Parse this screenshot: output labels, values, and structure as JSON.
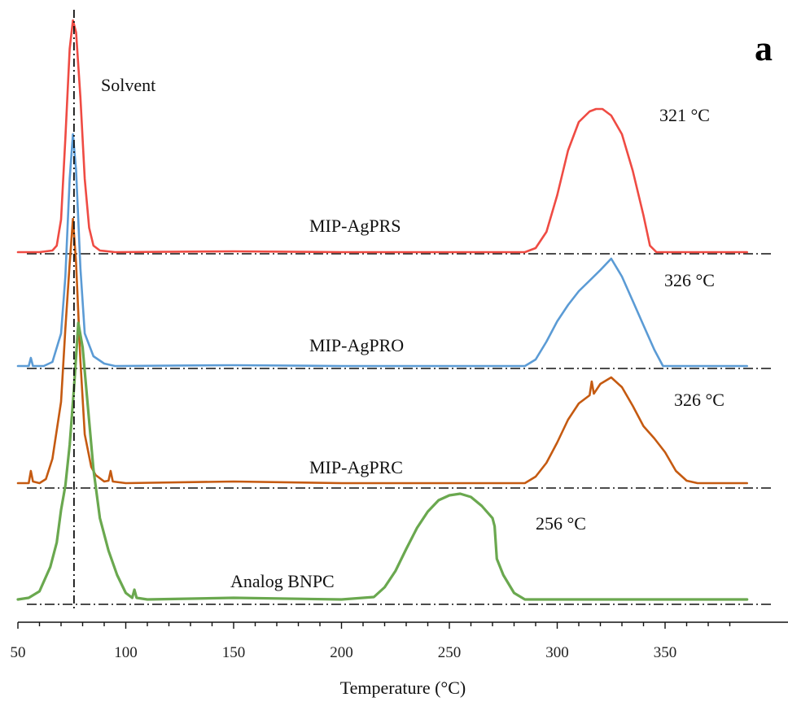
{
  "panel_label": "a",
  "chart_data": {
    "type": "line",
    "xlabel": "Temperature (°C)",
    "ylabel": "",
    "xlim": [
      50,
      388
    ],
    "xticks": [
      50,
      100,
      150,
      200,
      250,
      300,
      350
    ],
    "yaxis_visible": false,
    "grid": false,
    "solvent_label": "Solvent",
    "solvent_peak_x": 76,
    "series": [
      {
        "name": "MIP-AgPRS",
        "color": "#ef4b43",
        "peak_label": "321 °C",
        "points": [
          [
            50,
            0
          ],
          [
            60,
            0
          ],
          [
            66,
            2
          ],
          [
            68,
            8
          ],
          [
            70,
            40
          ],
          [
            72,
            140
          ],
          [
            74,
            250
          ],
          [
            75.5,
            285
          ],
          [
            77,
            270
          ],
          [
            79,
            190
          ],
          [
            81,
            90
          ],
          [
            83,
            30
          ],
          [
            85,
            8
          ],
          [
            88,
            2
          ],
          [
            95,
            0
          ],
          [
            150,
            1
          ],
          [
            200,
            0
          ],
          [
            250,
            0
          ],
          [
            285,
            0
          ],
          [
            290,
            5
          ],
          [
            295,
            25
          ],
          [
            300,
            70
          ],
          [
            305,
            125
          ],
          [
            310,
            160
          ],
          [
            315,
            173
          ],
          [
            318,
            176
          ],
          [
            321,
            176
          ],
          [
            325,
            168
          ],
          [
            330,
            145
          ],
          [
            335,
            100
          ],
          [
            340,
            45
          ],
          [
            343,
            8
          ],
          [
            346,
            0
          ],
          [
            388,
            0
          ]
        ]
      },
      {
        "name": "MIP-AgPRO",
        "color": "#5b9bd5",
        "peak_label": "326 °C",
        "points": [
          [
            50,
            0
          ],
          [
            55,
            0
          ],
          [
            56,
            10
          ],
          [
            57,
            0
          ],
          [
            62,
            0
          ],
          [
            66,
            5
          ],
          [
            70,
            40
          ],
          [
            72,
            110
          ],
          [
            74,
            230
          ],
          [
            75.5,
            285
          ],
          [
            77,
            240
          ],
          [
            79,
            120
          ],
          [
            81,
            40
          ],
          [
            85,
            12
          ],
          [
            90,
            3
          ],
          [
            95,
            0
          ],
          [
            150,
            1
          ],
          [
            200,
            0
          ],
          [
            250,
            0
          ],
          [
            285,
            0
          ],
          [
            290,
            8
          ],
          [
            295,
            30
          ],
          [
            300,
            55
          ],
          [
            305,
            75
          ],
          [
            310,
            92
          ],
          [
            315,
            105
          ],
          [
            320,
            118
          ],
          [
            325,
            132
          ],
          [
            330,
            110
          ],
          [
            335,
            80
          ],
          [
            340,
            50
          ],
          [
            345,
            20
          ],
          [
            349,
            0
          ],
          [
            388,
            0
          ]
        ]
      },
      {
        "name": "MIP-AgPRC",
        "color": "#c55a11",
        "peak_label": "326 °C",
        "points": [
          [
            50,
            0
          ],
          [
            55,
            0
          ],
          [
            56,
            15
          ],
          [
            57,
            2
          ],
          [
            60,
            0
          ],
          [
            63,
            5
          ],
          [
            66,
            30
          ],
          [
            70,
            100
          ],
          [
            72,
            190
          ],
          [
            74,
            270
          ],
          [
            75.5,
            325
          ],
          [
            77,
            270
          ],
          [
            79,
            150
          ],
          [
            81,
            60
          ],
          [
            84,
            20
          ],
          [
            86,
            10
          ],
          [
            90,
            2
          ],
          [
            92,
            3
          ],
          [
            93,
            15
          ],
          [
            94,
            2
          ],
          [
            100,
            0
          ],
          [
            150,
            2
          ],
          [
            200,
            0
          ],
          [
            250,
            0
          ],
          [
            285,
            0
          ],
          [
            290,
            8
          ],
          [
            295,
            25
          ],
          [
            300,
            50
          ],
          [
            305,
            78
          ],
          [
            310,
            98
          ],
          [
            315,
            108
          ],
          [
            316,
            125
          ],
          [
            317,
            110
          ],
          [
            320,
            122
          ],
          [
            325,
            130
          ],
          [
            330,
            118
          ],
          [
            335,
            95
          ],
          [
            340,
            70
          ],
          [
            345,
            55
          ],
          [
            350,
            38
          ],
          [
            355,
            15
          ],
          [
            360,
            3
          ],
          [
            365,
            0
          ],
          [
            388,
            0
          ]
        ]
      },
      {
        "name": "Analog BNPC",
        "color": "#6aa84f",
        "peak_label": "256 °C",
        "points": [
          [
            50,
            0
          ],
          [
            55,
            2
          ],
          [
            60,
            10
          ],
          [
            65,
            40
          ],
          [
            68,
            70
          ],
          [
            70,
            110
          ],
          [
            72,
            140
          ],
          [
            74,
            190
          ],
          [
            76,
            260
          ],
          [
            78,
            340
          ],
          [
            80,
            310
          ],
          [
            82,
            250
          ],
          [
            85,
            160
          ],
          [
            88,
            100
          ],
          [
            92,
            60
          ],
          [
            96,
            30
          ],
          [
            100,
            8
          ],
          [
            103,
            2
          ],
          [
            104,
            12
          ],
          [
            105,
            2
          ],
          [
            110,
            0
          ],
          [
            150,
            2
          ],
          [
            200,
            0
          ],
          [
            210,
            2
          ],
          [
            215,
            3
          ],
          [
            220,
            15
          ],
          [
            225,
            35
          ],
          [
            230,
            62
          ],
          [
            235,
            88
          ],
          [
            240,
            108
          ],
          [
            245,
            122
          ],
          [
            250,
            128
          ],
          [
            255,
            130
          ],
          [
            260,
            126
          ],
          [
            265,
            115
          ],
          [
            270,
            100
          ],
          [
            271,
            90
          ],
          [
            272,
            50
          ],
          [
            275,
            30
          ],
          [
            280,
            8
          ],
          [
            285,
            0
          ],
          [
            388,
            0
          ]
        ]
      }
    ]
  }
}
